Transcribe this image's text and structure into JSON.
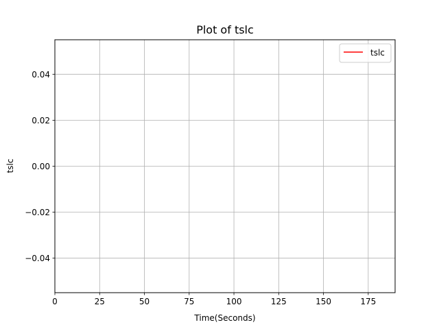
{
  "chart_data": {
    "type": "line",
    "title": "Plot of tslc",
    "xlabel": "Time(Seconds)",
    "ylabel": "tslc",
    "xlim": [
      0,
      190
    ],
    "ylim": [
      -0.055,
      0.055
    ],
    "xticks": [
      0,
      25,
      50,
      75,
      100,
      125,
      150,
      175
    ],
    "yticks": [
      0.04,
      0.02,
      0.0,
      -0.02,
      -0.04
    ],
    "xtick_labels": [
      "0",
      "25",
      "50",
      "75",
      "100",
      "125",
      "150",
      "175"
    ],
    "ytick_labels": [
      "0.04",
      "0.02",
      "0.00",
      "−0.02",
      "−0.04"
    ],
    "grid": true,
    "legend": {
      "placement": "top-right",
      "entries": [
        {
          "label": "tslc",
          "color": "#ff0000"
        }
      ]
    },
    "series": [
      {
        "name": "tslc",
        "color": "#ff0000",
        "x": [],
        "y": []
      }
    ]
  }
}
